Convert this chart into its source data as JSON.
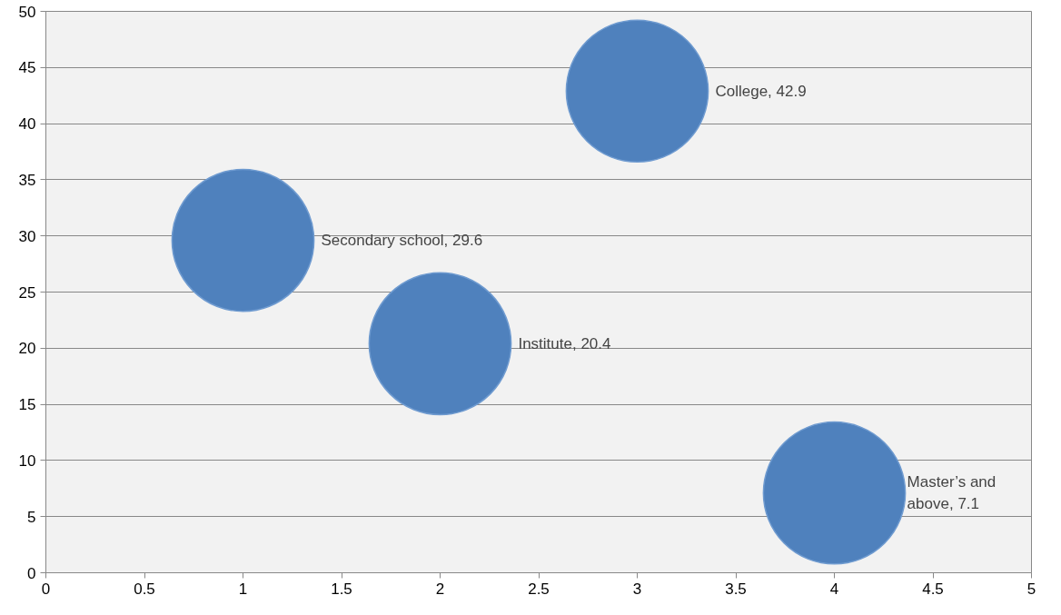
{
  "chart_data": {
    "type": "bubble",
    "x": [
      1,
      2,
      3,
      4
    ],
    "values": [
      29.6,
      20.4,
      42.9,
      7.1
    ],
    "sizes": [
      1,
      1,
      1,
      1
    ],
    "color": "#4f81bd",
    "value_labels": [
      "Secondary school, 29.6",
      "Institute, 20.4",
      "College, 42.9",
      "Master’s and above, 7.1"
    ],
    "xlim": [
      0,
      5
    ],
    "ylim": [
      0,
      50
    ],
    "xticks": [
      0,
      0.5,
      1,
      1.5,
      2,
      2.5,
      3,
      3.5,
      4,
      4.5,
      5
    ],
    "yticks": [
      0,
      5,
      10,
      15,
      20,
      25,
      30,
      35,
      40,
      45,
      50
    ],
    "grid": "y"
  }
}
